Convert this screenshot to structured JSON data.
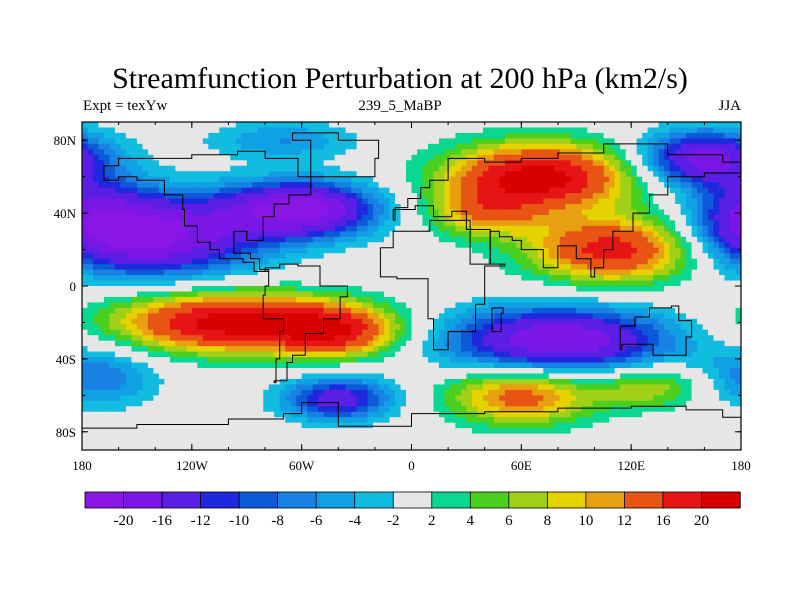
{
  "chart_data": {
    "type": "heatmap",
    "title": "Streamfunction Perturbation at 200 hPa (km2/s)",
    "subtitle_left": "Expt = texYw",
    "subtitle_center": "239_5_MaBP",
    "subtitle_right": "JJA",
    "xlim": [
      -180,
      180
    ],
    "ylim": [
      -90,
      90
    ],
    "x_ticks": [
      {
        "value": -180,
        "label": "180"
      },
      {
        "value": -120,
        "label": "120W"
      },
      {
        "value": -60,
        "label": "60W"
      },
      {
        "value": 0,
        "label": "0"
      },
      {
        "value": 60,
        "label": "60E"
      },
      {
        "value": 120,
        "label": "120E"
      },
      {
        "value": 180,
        "label": "180"
      }
    ],
    "y_ticks": [
      {
        "value": 80,
        "label": "80N"
      },
      {
        "value": 40,
        "label": "40N"
      },
      {
        "value": 0,
        "label": "0"
      },
      {
        "value": -40,
        "label": "40S"
      },
      {
        "value": -80,
        "label": "80S"
      }
    ],
    "colorbar": {
      "levels": [
        -20,
        -16,
        -12,
        -10,
        -8,
        -6,
        -4,
        -2,
        2,
        4,
        6,
        8,
        10,
        12,
        16,
        20
      ],
      "labels": [
        "-20",
        "-16",
        "-12",
        "-10",
        "-8",
        "-6",
        "-4",
        "-2",
        "2",
        "4",
        "6",
        "8",
        "10",
        "12",
        "16",
        "20"
      ],
      "colors": [
        "#8a16e6",
        "#7a16e6",
        "#5b1ee6",
        "#1e28dc",
        "#0c5ad8",
        "#1882e4",
        "#10a0e4",
        "#12bce0",
        "#e6e6e6",
        "#0ad890",
        "#4cd020",
        "#a0d018",
        "#e6d200",
        "#e8a010",
        "#e85414",
        "#e61414",
        "#d80000"
      ]
    },
    "approx_field": {
      "description": "Estimated streamfunction anomaly centers (lon, lat, amplitude km2/s, lon-radius, lat-radius)",
      "centers": [
        {
          "lon": -140,
          "lat": 28,
          "amp": -21,
          "rx": 55,
          "ry": 22
        },
        {
          "lon": -60,
          "lat": 42,
          "amp": -22,
          "rx": 40,
          "ry": 15
        },
        {
          "lon": 160,
          "lat": 70,
          "amp": -18,
          "rx": 35,
          "ry": 15
        },
        {
          "lon": -175,
          "lat": 40,
          "amp": -10,
          "rx": 30,
          "ry": 20
        },
        {
          "lon": 70,
          "lat": 60,
          "amp": 22,
          "rx": 50,
          "ry": 18
        },
        {
          "lon": 110,
          "lat": 20,
          "amp": 18,
          "rx": 45,
          "ry": 18
        },
        {
          "lon": 40,
          "lat": 40,
          "amp": 10,
          "rx": 30,
          "ry": 14
        },
        {
          "lon": -100,
          "lat": -20,
          "amp": 22,
          "rx": 60,
          "ry": 16
        },
        {
          "lon": -40,
          "lat": -25,
          "amp": 15,
          "rx": 35,
          "ry": 14
        },
        {
          "lon": 60,
          "lat": -60,
          "amp": 14,
          "rx": 40,
          "ry": 16
        },
        {
          "lon": 130,
          "lat": -55,
          "amp": 8,
          "rx": 30,
          "ry": 12
        },
        {
          "lon": 80,
          "lat": -30,
          "amp": -20,
          "rx": 60,
          "ry": 18
        },
        {
          "lon": -170,
          "lat": -50,
          "amp": -8,
          "rx": 30,
          "ry": 16
        },
        {
          "lon": -40,
          "lat": -62,
          "amp": -14,
          "rx": 30,
          "ry": 12
        },
        {
          "lon": -70,
          "lat": 80,
          "amp": -6,
          "rx": 40,
          "ry": 10
        }
      ]
    }
  }
}
